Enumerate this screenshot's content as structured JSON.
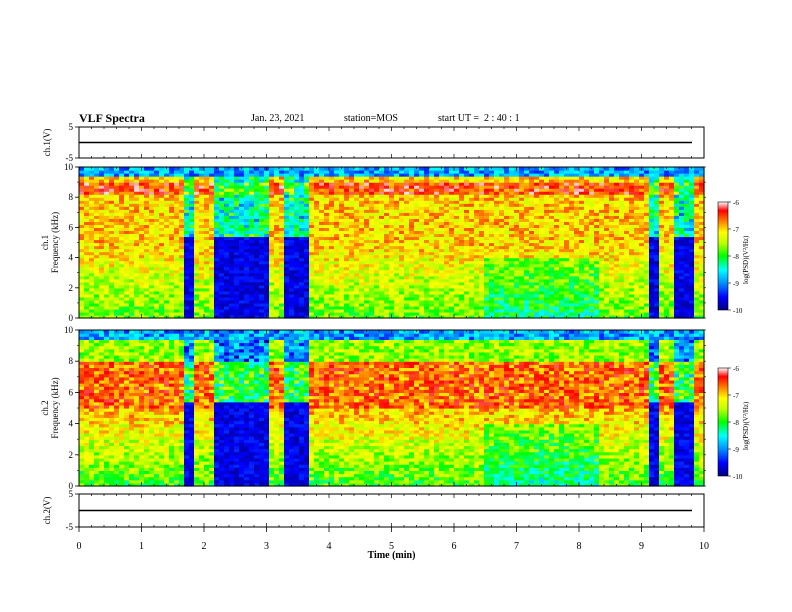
{
  "header": {
    "title": "VLF Spectra",
    "date": "Jan. 23, 2021",
    "station": "station=MOS",
    "start": "start UT =  2 : 40 : 1"
  },
  "chart_data": [
    {
      "type": "line",
      "panel": "ch1-waveform",
      "ylabel": "ch.1(V)",
      "ylim": [
        -5,
        5
      ],
      "yticks": [
        "5",
        "-5"
      ],
      "x": [
        0,
        10
      ],
      "values": [
        0,
        0
      ]
    },
    {
      "type": "heatmap",
      "panel": "ch1-spectrogram",
      "ylabel": "ch.1\nFrequency (kHz)",
      "ylim": [
        0,
        10
      ],
      "yticks": [
        "0",
        "2",
        "4",
        "6",
        "8",
        "10"
      ],
      "xlim": [
        0,
        10
      ],
      "colorbar": {
        "label": "log(PSD)(V²/Hz)",
        "ticks": [
          "-6",
          "-7",
          "-8",
          "-9",
          "-10"
        ],
        "range": [
          -10,
          -6
        ],
        "colors": [
          "#000080",
          "#0000ff",
          "#00a0ff",
          "#00ffff",
          "#00ff00",
          "#ffff00",
          "#ff8000",
          "#ff0000",
          "#ffffff"
        ]
      },
      "gaps_min": [
        [
          1.68,
          1.82
        ],
        [
          2.2,
          3.05
        ],
        [
          3.3,
          3.7
        ],
        [
          9.15,
          9.25
        ],
        [
          9.55,
          9.85
        ]
      ]
    },
    {
      "type": "heatmap",
      "panel": "ch2-spectrogram",
      "ylabel": "ch.2\nFrequency (kHz)",
      "ylim": [
        0,
        10
      ],
      "yticks": [
        "0",
        "2",
        "4",
        "6",
        "8",
        "10"
      ],
      "xlim": [
        0,
        10
      ],
      "colorbar": {
        "label": "log(PSD)(V²/Hz)",
        "ticks": [
          "-6",
          "-7",
          "-8",
          "-9",
          "-10"
        ],
        "range": [
          -10,
          -6
        ]
      },
      "gaps_min": [
        [
          1.68,
          1.82
        ],
        [
          2.2,
          3.05
        ],
        [
          3.3,
          3.7
        ],
        [
          9.15,
          9.25
        ],
        [
          9.55,
          9.85
        ]
      ]
    },
    {
      "type": "line",
      "panel": "ch2-waveform",
      "ylabel": "ch.2(V)",
      "ylim": [
        -5,
        5
      ],
      "yticks": [
        "5",
        "-5"
      ],
      "x": [
        0,
        10
      ],
      "values": [
        0,
        0
      ]
    }
  ],
  "xaxis": {
    "label": "Time (min)",
    "ticks": [
      "0",
      "1",
      "2",
      "3",
      "4",
      "5",
      "6",
      "7",
      "8",
      "9",
      "10"
    ],
    "range": [
      0,
      10
    ]
  }
}
